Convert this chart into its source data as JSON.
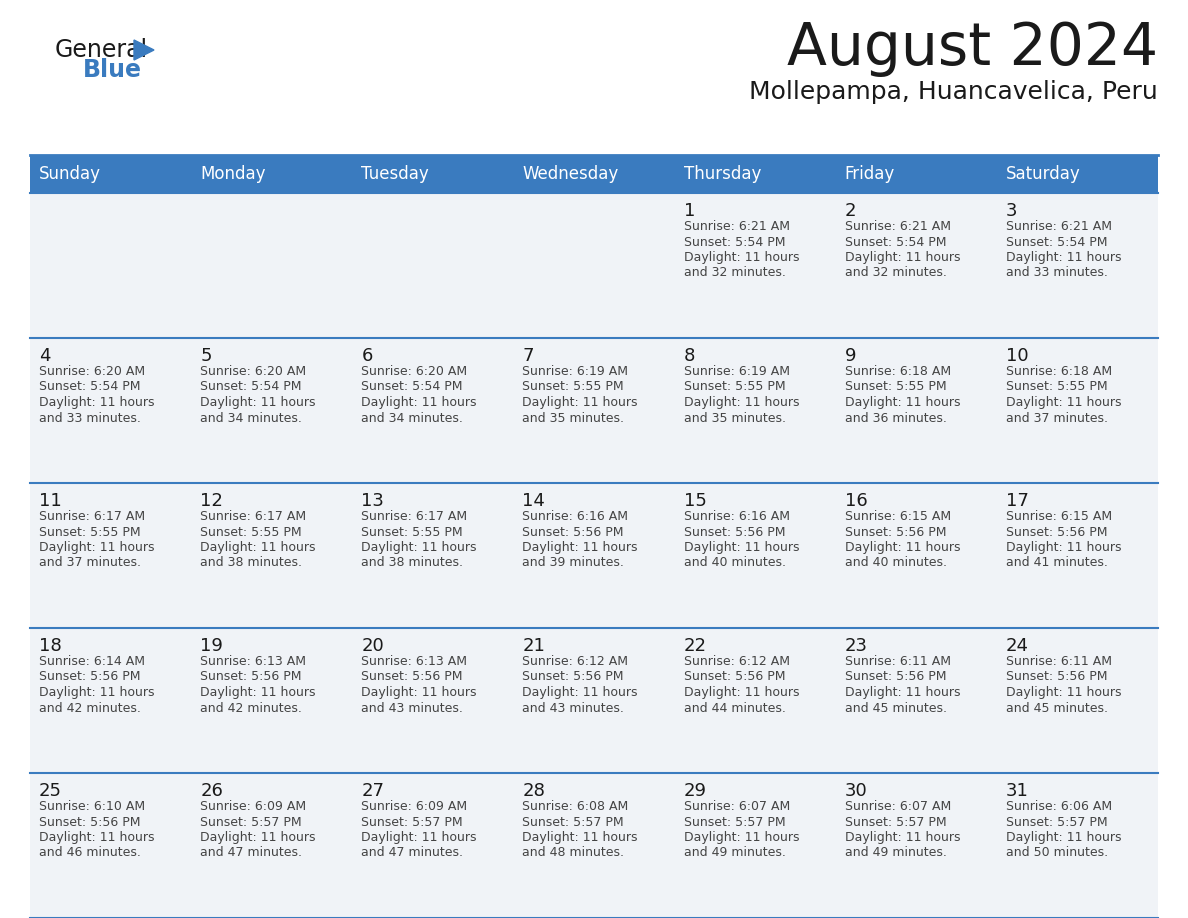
{
  "title": "August 2024",
  "subtitle": "Mollepampa, Huancavelica, Peru",
  "header_bg_color": "#3a7bbf",
  "header_text_color": "#ffffff",
  "day_names": [
    "Sunday",
    "Monday",
    "Tuesday",
    "Wednesday",
    "Thursday",
    "Friday",
    "Saturday"
  ],
  "cell_bg_color": "#f0f3f7",
  "cell_border_color": "#3a7bbf",
  "title_color": "#1a1a1a",
  "subtitle_color": "#1a1a1a",
  "day_num_color": "#1a1a1a",
  "cell_text_color": "#444444",
  "logo_color_general": "#1a1a1a",
  "logo_color_blue": "#3a7bbf",
  "logo_triangle_color": "#3a7bbf",
  "calendar_data": [
    [
      null,
      null,
      null,
      null,
      {
        "day": 1,
        "sunrise": "6:21 AM",
        "sunset": "5:54 PM",
        "daylight": "11 hours and 32 minutes"
      },
      {
        "day": 2,
        "sunrise": "6:21 AM",
        "sunset": "5:54 PM",
        "daylight": "11 hours and 32 minutes"
      },
      {
        "day": 3,
        "sunrise": "6:21 AM",
        "sunset": "5:54 PM",
        "daylight": "11 hours and 33 minutes"
      }
    ],
    [
      {
        "day": 4,
        "sunrise": "6:20 AM",
        "sunset": "5:54 PM",
        "daylight": "11 hours and 33 minutes"
      },
      {
        "day": 5,
        "sunrise": "6:20 AM",
        "sunset": "5:54 PM",
        "daylight": "11 hours and 34 minutes"
      },
      {
        "day": 6,
        "sunrise": "6:20 AM",
        "sunset": "5:54 PM",
        "daylight": "11 hours and 34 minutes"
      },
      {
        "day": 7,
        "sunrise": "6:19 AM",
        "sunset": "5:55 PM",
        "daylight": "11 hours and 35 minutes"
      },
      {
        "day": 8,
        "sunrise": "6:19 AM",
        "sunset": "5:55 PM",
        "daylight": "11 hours and 35 minutes"
      },
      {
        "day": 9,
        "sunrise": "6:18 AM",
        "sunset": "5:55 PM",
        "daylight": "11 hours and 36 minutes"
      },
      {
        "day": 10,
        "sunrise": "6:18 AM",
        "sunset": "5:55 PM",
        "daylight": "11 hours and 37 minutes"
      }
    ],
    [
      {
        "day": 11,
        "sunrise": "6:17 AM",
        "sunset": "5:55 PM",
        "daylight": "11 hours and 37 minutes"
      },
      {
        "day": 12,
        "sunrise": "6:17 AM",
        "sunset": "5:55 PM",
        "daylight": "11 hours and 38 minutes"
      },
      {
        "day": 13,
        "sunrise": "6:17 AM",
        "sunset": "5:55 PM",
        "daylight": "11 hours and 38 minutes"
      },
      {
        "day": 14,
        "sunrise": "6:16 AM",
        "sunset": "5:56 PM",
        "daylight": "11 hours and 39 minutes"
      },
      {
        "day": 15,
        "sunrise": "6:16 AM",
        "sunset": "5:56 PM",
        "daylight": "11 hours and 40 minutes"
      },
      {
        "day": 16,
        "sunrise": "6:15 AM",
        "sunset": "5:56 PM",
        "daylight": "11 hours and 40 minutes"
      },
      {
        "day": 17,
        "sunrise": "6:15 AM",
        "sunset": "5:56 PM",
        "daylight": "11 hours and 41 minutes"
      }
    ],
    [
      {
        "day": 18,
        "sunrise": "6:14 AM",
        "sunset": "5:56 PM",
        "daylight": "11 hours and 42 minutes"
      },
      {
        "day": 19,
        "sunrise": "6:13 AM",
        "sunset": "5:56 PM",
        "daylight": "11 hours and 42 minutes"
      },
      {
        "day": 20,
        "sunrise": "6:13 AM",
        "sunset": "5:56 PM",
        "daylight": "11 hours and 43 minutes"
      },
      {
        "day": 21,
        "sunrise": "6:12 AM",
        "sunset": "5:56 PM",
        "daylight": "11 hours and 43 minutes"
      },
      {
        "day": 22,
        "sunrise": "6:12 AM",
        "sunset": "5:56 PM",
        "daylight": "11 hours and 44 minutes"
      },
      {
        "day": 23,
        "sunrise": "6:11 AM",
        "sunset": "5:56 PM",
        "daylight": "11 hours and 45 minutes"
      },
      {
        "day": 24,
        "sunrise": "6:11 AM",
        "sunset": "5:56 PM",
        "daylight": "11 hours and 45 minutes"
      }
    ],
    [
      {
        "day": 25,
        "sunrise": "6:10 AM",
        "sunset": "5:56 PM",
        "daylight": "11 hours and 46 minutes"
      },
      {
        "day": 26,
        "sunrise": "6:09 AM",
        "sunset": "5:57 PM",
        "daylight": "11 hours and 47 minutes"
      },
      {
        "day": 27,
        "sunrise": "6:09 AM",
        "sunset": "5:57 PM",
        "daylight": "11 hours and 47 minutes"
      },
      {
        "day": 28,
        "sunrise": "6:08 AM",
        "sunset": "5:57 PM",
        "daylight": "11 hours and 48 minutes"
      },
      {
        "day": 29,
        "sunrise": "6:07 AM",
        "sunset": "5:57 PM",
        "daylight": "11 hours and 49 minutes"
      },
      {
        "day": 30,
        "sunrise": "6:07 AM",
        "sunset": "5:57 PM",
        "daylight": "11 hours and 49 minutes"
      },
      {
        "day": 31,
        "sunrise": "6:06 AM",
        "sunset": "5:57 PM",
        "daylight": "11 hours and 50 minutes"
      }
    ]
  ]
}
